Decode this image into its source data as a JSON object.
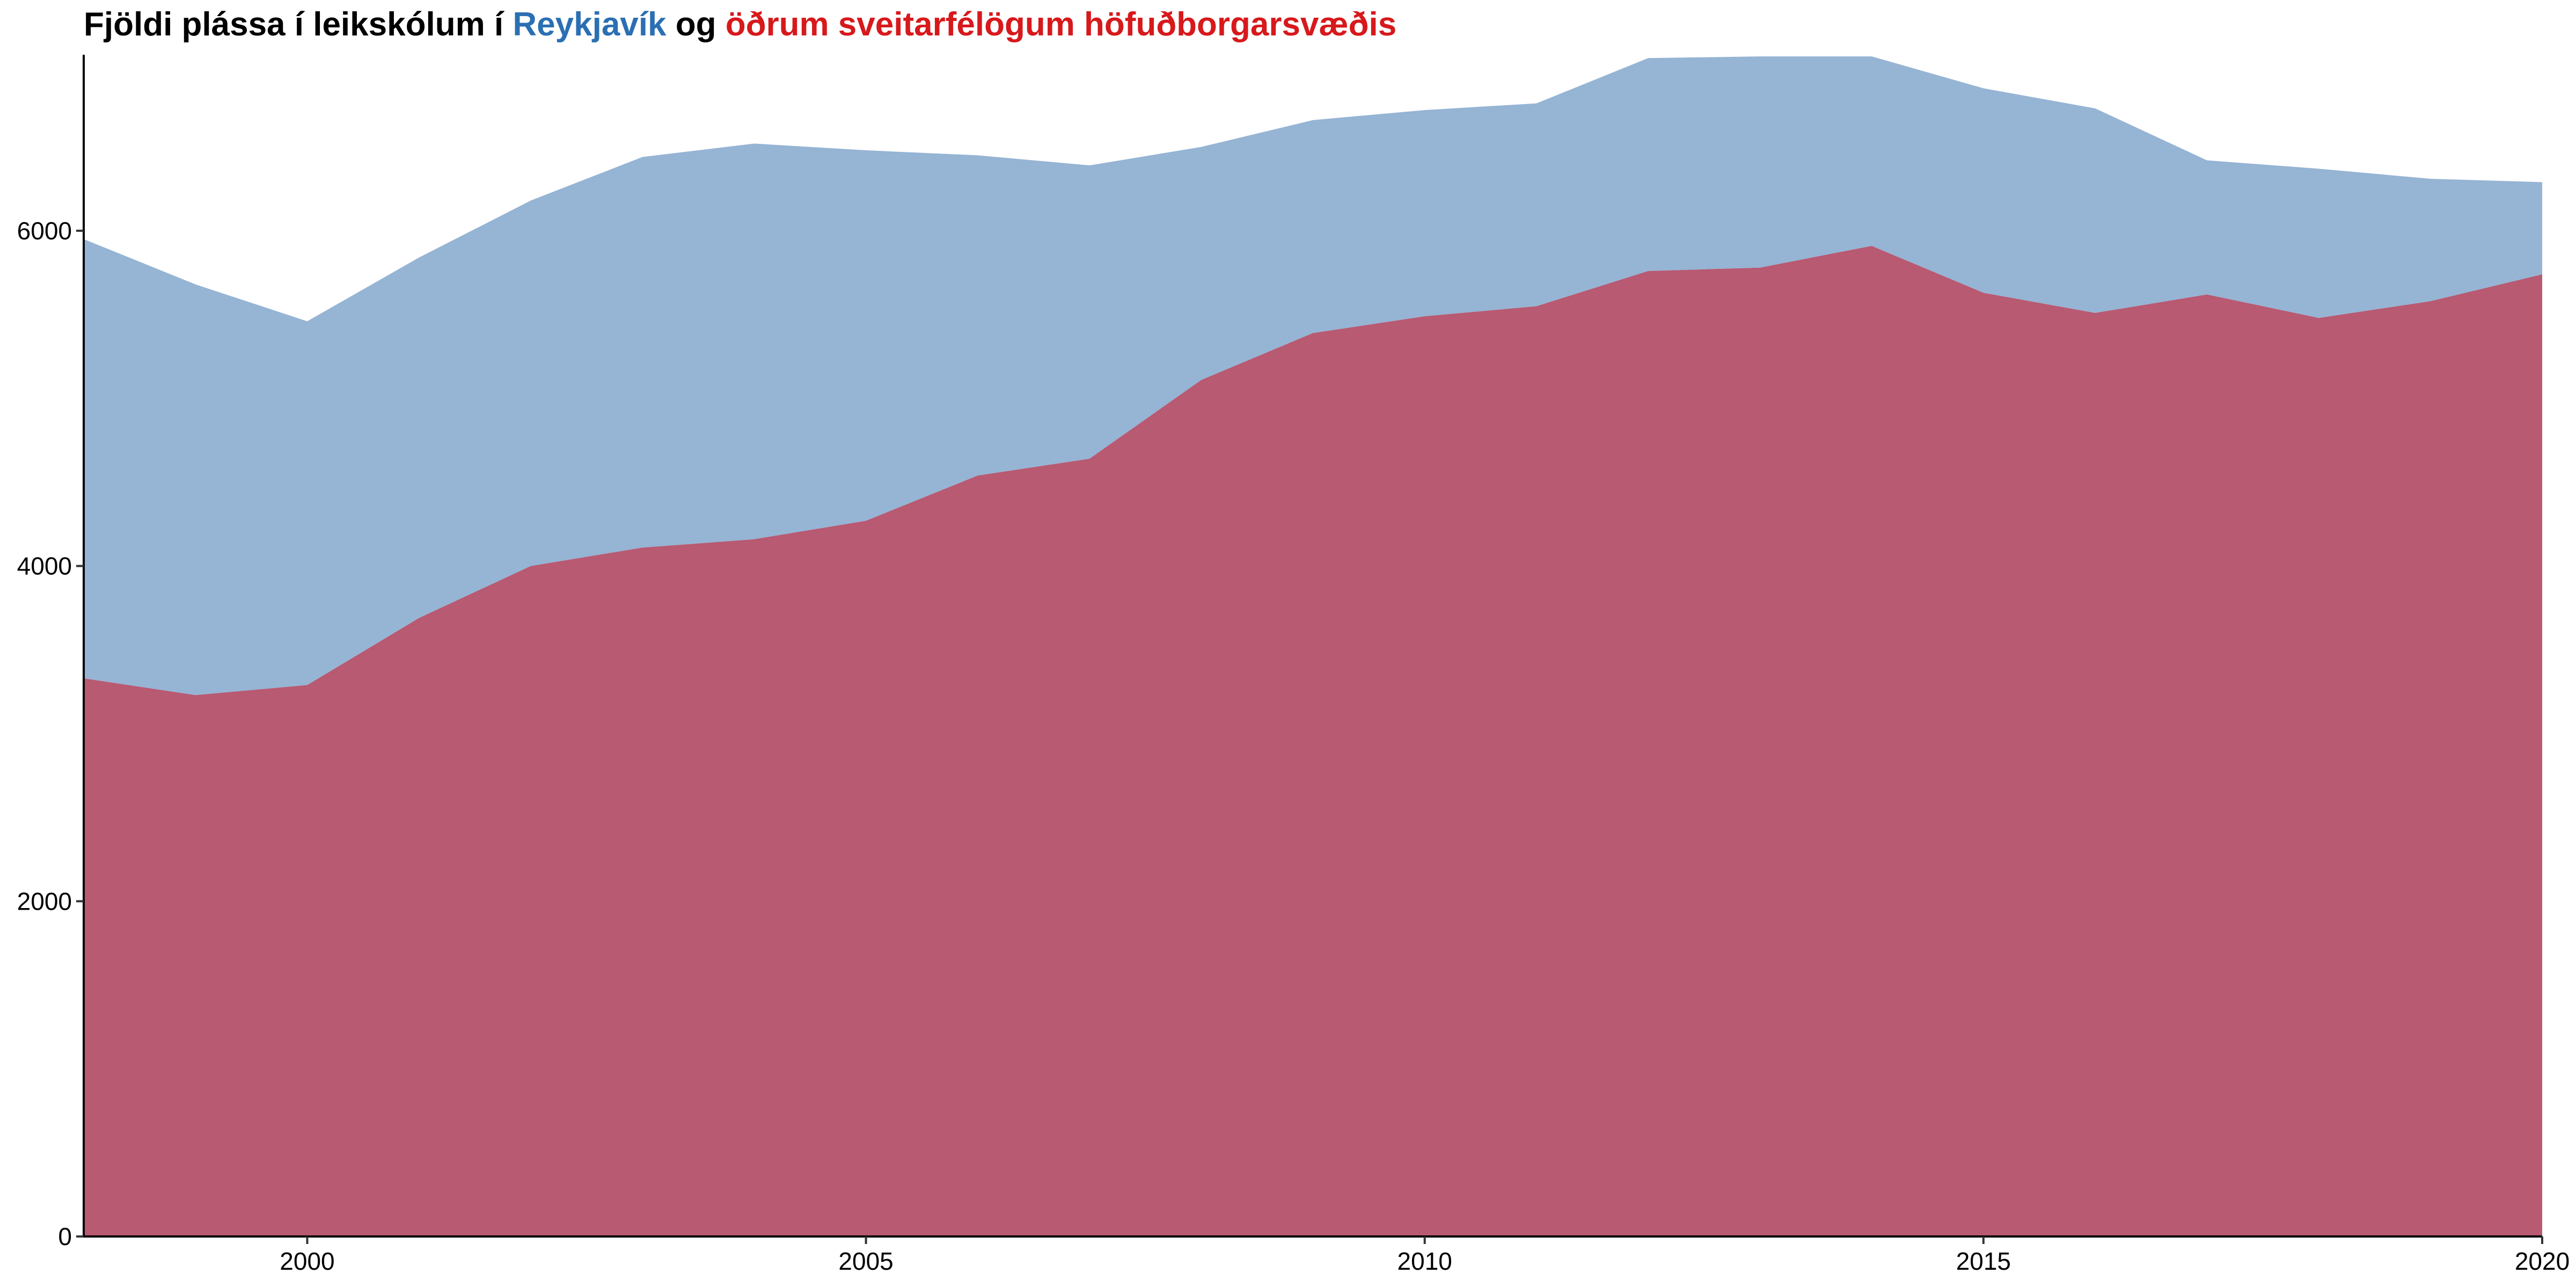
{
  "chart_data": {
    "type": "area",
    "stacked": true,
    "title": {
      "prefix": "Fjöldi plássa í leikskólum í ",
      "highlight1": "Reykjavík",
      "middle": " og ",
      "highlight2": "öðrum sveitarfélögum höfuðborgarsvæðis"
    },
    "xlabel": "",
    "ylabel": "",
    "x": [
      1998,
      1999,
      2000,
      2001,
      2002,
      2003,
      2004,
      2005,
      2006,
      2007,
      2008,
      2009,
      2010,
      2011,
      2012,
      2013,
      2014,
      2015,
      2016,
      2017,
      2018,
      2019,
      2020
    ],
    "series": [
      {
        "key": "other",
        "color": "#b75a72",
        "title_color": "#d7191c",
        "values": [
          3330,
          3230,
          3290,
          3690,
          4000,
          4110,
          4160,
          4270,
          4540,
          4640,
          5110,
          5390,
          5490,
          5550,
          5760,
          5780,
          5910,
          5630,
          5510,
          5620,
          5480,
          5580,
          5740
        ]
      },
      {
        "key": "reykjavik",
        "color": "#96b4d4",
        "title_color": "#2b6fb3",
        "values": [
          2620,
          2450,
          2170,
          2150,
          2180,
          2330,
          2360,
          2210,
          1910,
          1750,
          1390,
          1270,
          1230,
          1210,
          1270,
          1260,
          1130,
          1220,
          1220,
          800,
          890,
          730,
          550
        ]
      }
    ],
    "xlim": [
      1998,
      2020
    ],
    "ylim": [
      0,
      7050
    ],
    "xticks": [
      2000,
      2005,
      2010,
      2015,
      2020
    ],
    "yticks": [
      0,
      2000,
      4000,
      6000
    ],
    "grid": false,
    "legend": "none"
  }
}
